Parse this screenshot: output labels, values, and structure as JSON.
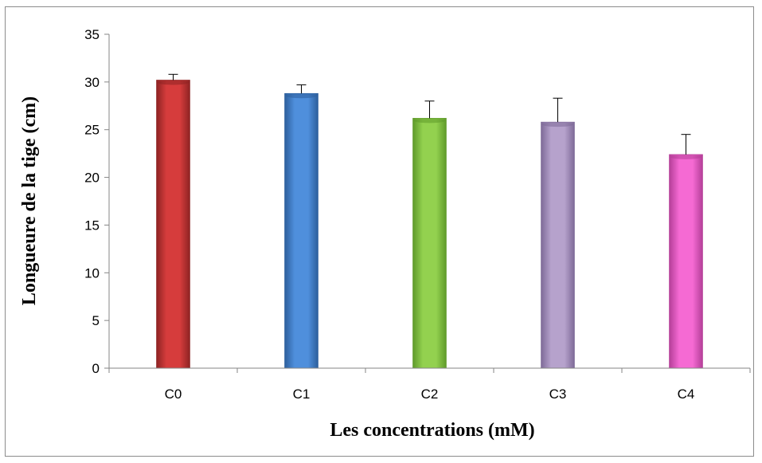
{
  "chart_data": {
    "type": "bar",
    "title": "",
    "xlabel": "Les concentrations (mM)",
    "ylabel": "Longueure de la tige (cm)",
    "categories": [
      "C0",
      "C1",
      "C2",
      "C3",
      "C4"
    ],
    "values": [
      30.2,
      28.8,
      26.2,
      25.8,
      22.4
    ],
    "error_plus": [
      0.6,
      0.9,
      1.8,
      2.5,
      2.1
    ],
    "ylim": [
      0,
      35
    ],
    "yticks": [
      "0",
      "5",
      "10",
      "15",
      "20",
      "25",
      "30",
      "35"
    ],
    "grid": false,
    "legend": "none",
    "colors": [
      "#d63c3c",
      "#4f8fdc",
      "#93d14f",
      "#b6a2cc",
      "#f56ad3"
    ],
    "dark_colors": [
      "#8e2323",
      "#2d5f9c",
      "#5f9a2a",
      "#7e6a98",
      "#b43e98"
    ]
  }
}
